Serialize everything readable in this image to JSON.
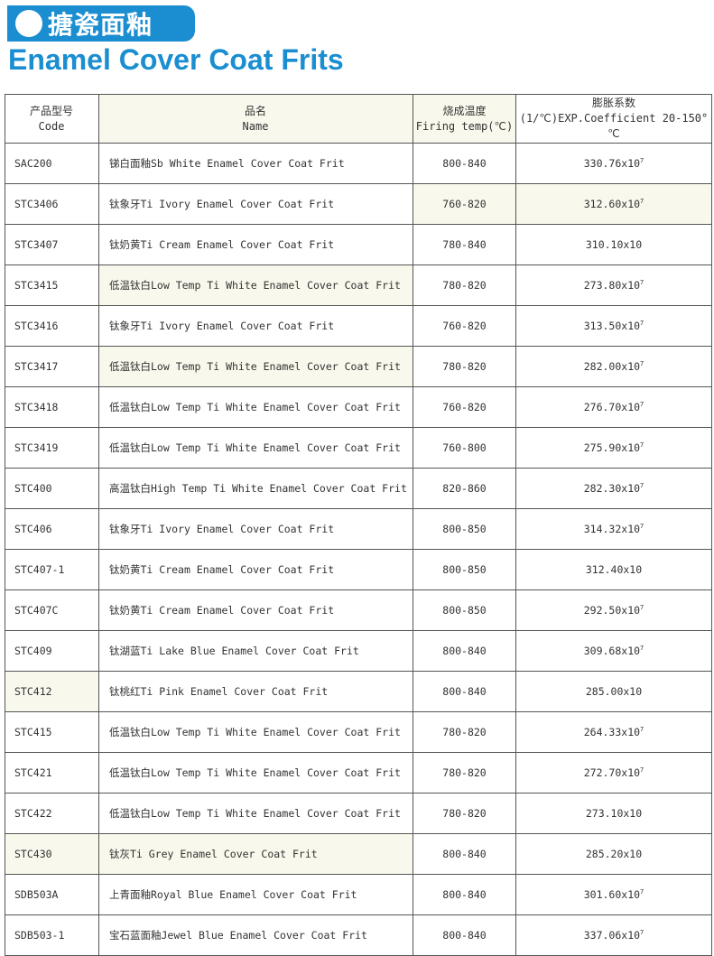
{
  "header": {
    "banner": "搪瓷面釉",
    "title": "Enamel Cover Coat Frits"
  },
  "table": {
    "columns": [
      {
        "zh": "产品型号",
        "en": "Code"
      },
      {
        "zh": "品名",
        "en": "Name"
      },
      {
        "zh": "烧成温度",
        "en": "Firing temp(℃)"
      },
      {
        "zh": "膨胀系数",
        "en": "(1/℃)EXP.Coefficient 20-150° ℃"
      }
    ],
    "rows": [
      {
        "code": "SAC200",
        "name": "锑白面釉Sb White Enamel Cover Coat Frit",
        "temp": "800-840",
        "coef": "330.76x10",
        "exp": "7"
      },
      {
        "code": "STC3406",
        "name": "钛象牙Ti Ivory Enamel Cover Coat Frit",
        "temp": "760-820",
        "coef": "312.60x10",
        "exp": "7"
      },
      {
        "code": "STC3407",
        "name": "钛奶黄Ti Cream Enamel Cover Coat Frit",
        "temp": "780-840",
        "coef": "310.10x10",
        "exp": ""
      },
      {
        "code": "STC3415",
        "name": "低温钛白Low Temp Ti White Enamel Cover Coat Frit",
        "temp": "780-820",
        "coef": "273.80x10",
        "exp": "7"
      },
      {
        "code": "STC3416",
        "name": "钛象牙Ti Ivory Enamel Cover Coat Frit",
        "temp": "760-820",
        "coef": "313.50x10",
        "exp": "7"
      },
      {
        "code": "STC3417",
        "name": "低温钛白Low Temp Ti White Enamel Cover Coat Frit",
        "temp": "780-820",
        "coef": "282.00x10",
        "exp": "7"
      },
      {
        "code": "STC3418",
        "name": "低温钛白Low Temp Ti White Enamel Cover Coat Frit",
        "temp": "760-820",
        "coef": "276.70x10",
        "exp": "7"
      },
      {
        "code": "STC3419",
        "name": "低温钛白Low Temp Ti White Enamel Cover Coat Frit",
        "temp": "760-800",
        "coef": "275.90x10",
        "exp": "7"
      },
      {
        "code": "STC400",
        "name": "高温钛白High Temp Ti White Enamel Cover Coat Frit",
        "temp": "820-860",
        "coef": "282.30x10",
        "exp": "7"
      },
      {
        "code": "STC406",
        "name": "钛象牙Ti Ivory Enamel Cover Coat Frit",
        "temp": "800-850",
        "coef": "314.32x10",
        "exp": "7"
      },
      {
        "code": "STC407-1",
        "name": "钛奶黄Ti Cream Enamel Cover Coat Frit",
        "temp": "800-850",
        "coef": "312.40x10",
        "exp": ""
      },
      {
        "code": "STC407C",
        "name": "钛奶黄Ti Cream Enamel Cover Coat Frit",
        "temp": "800-850",
        "coef": "292.50x10",
        "exp": "7"
      },
      {
        "code": "STC409",
        "name": "钛湖蓝Ti Lake Blue Enamel Cover Coat Frit",
        "temp": "800-840",
        "coef": "309.68x10",
        "exp": "7"
      },
      {
        "code": "STC412",
        "name": "钛桃红Ti Pink Enamel Cover Coat Frit",
        "temp": "800-840",
        "coef": "285.00x10",
        "exp": ""
      },
      {
        "code": "STC415",
        "name": "低温钛白Low Temp Ti White Enamel Cover Coat Frit",
        "temp": "780-820",
        "coef": "264.33x10",
        "exp": "7"
      },
      {
        "code": "STC421",
        "name": "低温钛白Low Temp Ti White Enamel Cover Coat Frit",
        "temp": "780-820",
        "coef": "272.70x10",
        "exp": "7"
      },
      {
        "code": "STC422",
        "name": "低温钛白Low Temp Ti White Enamel Cover Coat Frit",
        "temp": "780-820",
        "coef": "273.10x10",
        "exp": ""
      },
      {
        "code": "STC430",
        "name": "钛灰Ti Grey Enamel Cover Coat Frit",
        "temp": "800-840",
        "coef": "285.20x10",
        "exp": ""
      },
      {
        "code": "SDB503A",
        "name": "上青面釉Royal Blue Enamel Cover Coat Frit",
        "temp": "800-840",
        "coef": "301.60x10",
        "exp": "7"
      },
      {
        "code": "SDB503-1",
        "name": "宝石蓝面釉Jewel Blue Enamel Cover Coat Frit",
        "temp": "800-840",
        "coef": "337.06x10",
        "exp": "7"
      }
    ]
  }
}
